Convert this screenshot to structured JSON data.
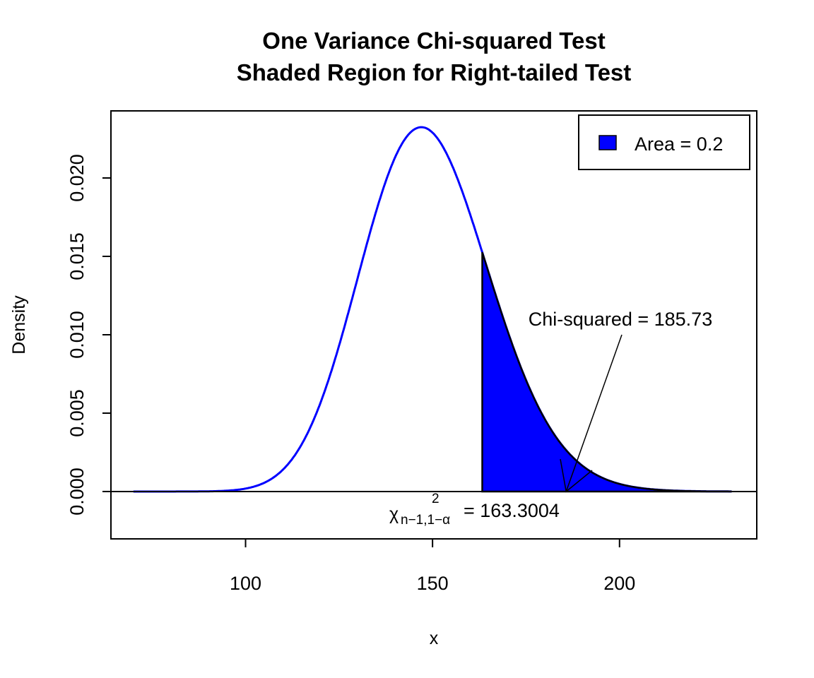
{
  "chart_data": {
    "type": "area",
    "title": "One Variance Chi-squared Test",
    "subtitle": "Shaded Region for Right-tailed Test",
    "xlabel": "x",
    "ylabel": "Density",
    "distribution": "chi-squared",
    "df": 149,
    "curve_range": [
      70,
      230
    ],
    "xlim": [
      64,
      236.7
    ],
    "ylim": [
      -0.00302,
      0.02428
    ],
    "x_ticks": [
      "100",
      "150",
      "200"
    ],
    "x_tick_values": [
      100,
      150,
      200
    ],
    "y_ticks": [
      "0.000",
      "0.005",
      "0.010",
      "0.015",
      "0.020"
    ],
    "y_tick_values": [
      0,
      0.005,
      0.01,
      0.015,
      0.02
    ],
    "grid": false,
    "curve_color": "#0000FF",
    "shade_color": "#0000FF",
    "critical_value": 163.3004,
    "critical_label_value": "= 163.3004",
    "critical_symbol": "χ",
    "critical_sub": "n−1,1−α",
    "critical_sup": "2",
    "test_statistic": 185.73,
    "test_statistic_label": "Chi-squared = 185.73",
    "legend": {
      "position": "top-right",
      "entries": [
        {
          "label": "Area = 0.2",
          "color": "#0000FF"
        }
      ]
    }
  }
}
